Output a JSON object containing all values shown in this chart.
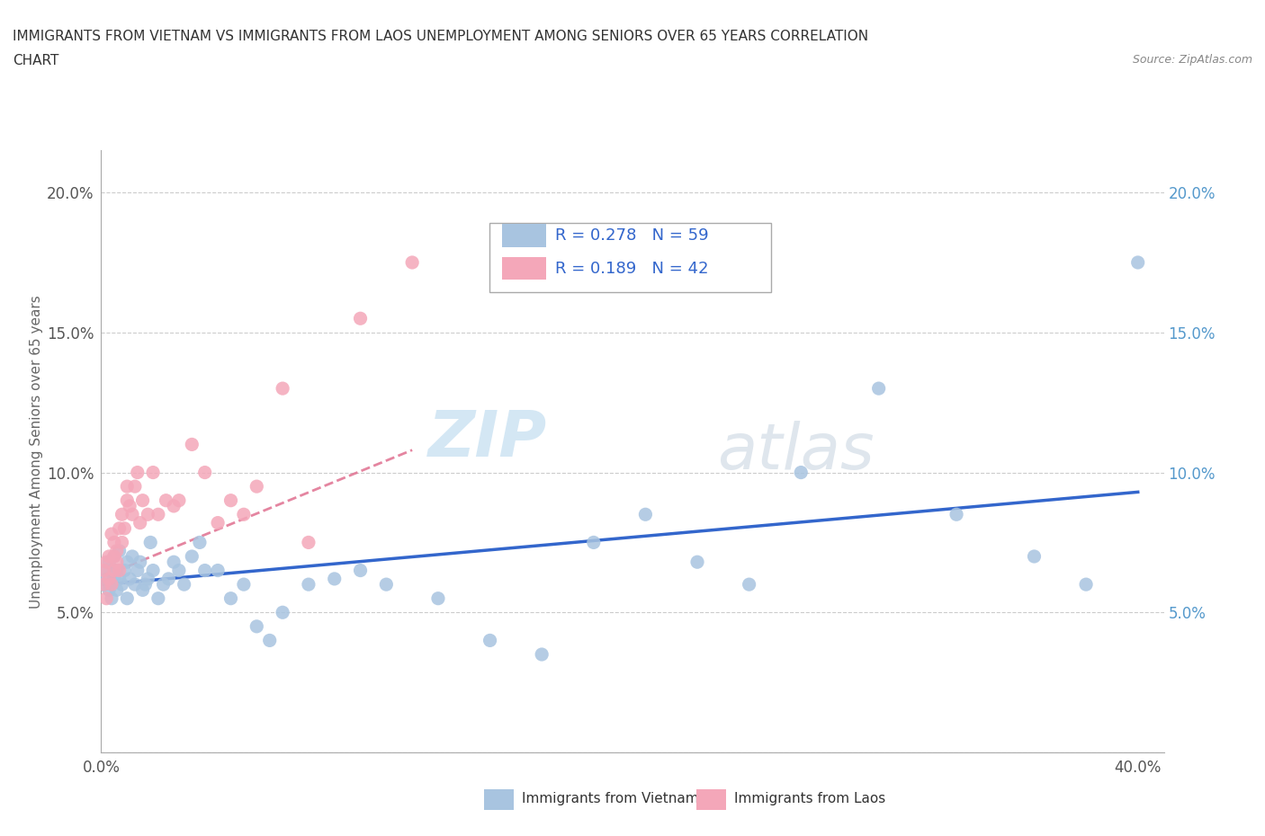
{
  "title_line1": "IMMIGRANTS FROM VIETNAM VS IMMIGRANTS FROM LAOS UNEMPLOYMENT AMONG SENIORS OVER 65 YEARS CORRELATION",
  "title_line2": "CHART",
  "source": "Source: ZipAtlas.com",
  "ylabel": "Unemployment Among Seniors over 65 years",
  "xlim": [
    0.0,
    0.41
  ],
  "ylim": [
    0.0,
    0.215
  ],
  "xticks": [
    0.0,
    0.1,
    0.2,
    0.3,
    0.4
  ],
  "xticklabels": [
    "0.0%",
    "",
    "",
    "",
    "40.0%"
  ],
  "yticks": [
    0.0,
    0.05,
    0.1,
    0.15,
    0.2
  ],
  "yticklabels": [
    "",
    "5.0%",
    "10.0%",
    "15.0%",
    "20.0%"
  ],
  "vietnam_color": "#a8c4e0",
  "laos_color": "#f4a7b9",
  "vietnam_line_color": "#3366cc",
  "laos_line_color": "#e07090",
  "R_vietnam": 0.278,
  "N_vietnam": 59,
  "R_laos": 0.189,
  "N_laos": 42,
  "legend_vietnam": "Immigrants from Vietnam",
  "legend_laos": "Immigrants from Laos",
  "watermark_zip": "ZIP",
  "watermark_atlas": "atlas",
  "vietnam_scatter_x": [
    0.001,
    0.002,
    0.002,
    0.003,
    0.003,
    0.004,
    0.004,
    0.005,
    0.005,
    0.006,
    0.006,
    0.007,
    0.007,
    0.008,
    0.009,
    0.01,
    0.01,
    0.011,
    0.012,
    0.013,
    0.014,
    0.015,
    0.016,
    0.017,
    0.018,
    0.019,
    0.02,
    0.022,
    0.024,
    0.026,
    0.028,
    0.03,
    0.032,
    0.035,
    0.038,
    0.04,
    0.045,
    0.05,
    0.055,
    0.06,
    0.065,
    0.07,
    0.08,
    0.09,
    0.1,
    0.11,
    0.13,
    0.15,
    0.17,
    0.19,
    0.21,
    0.23,
    0.25,
    0.27,
    0.3,
    0.33,
    0.36,
    0.38,
    0.4
  ],
  "vietnam_scatter_y": [
    0.06,
    0.062,
    0.065,
    0.058,
    0.068,
    0.06,
    0.055,
    0.063,
    0.07,
    0.058,
    0.065,
    0.062,
    0.072,
    0.06,
    0.065,
    0.055,
    0.068,
    0.062,
    0.07,
    0.06,
    0.065,
    0.068,
    0.058,
    0.06,
    0.062,
    0.075,
    0.065,
    0.055,
    0.06,
    0.062,
    0.068,
    0.065,
    0.06,
    0.07,
    0.075,
    0.065,
    0.065,
    0.055,
    0.06,
    0.045,
    0.04,
    0.05,
    0.06,
    0.062,
    0.065,
    0.06,
    0.055,
    0.04,
    0.035,
    0.075,
    0.085,
    0.068,
    0.06,
    0.1,
    0.13,
    0.085,
    0.07,
    0.06,
    0.175
  ],
  "laos_scatter_x": [
    0.001,
    0.001,
    0.002,
    0.002,
    0.003,
    0.003,
    0.004,
    0.004,
    0.005,
    0.005,
    0.005,
    0.006,
    0.006,
    0.007,
    0.007,
    0.008,
    0.008,
    0.009,
    0.01,
    0.01,
    0.011,
    0.012,
    0.013,
    0.014,
    0.015,
    0.016,
    0.018,
    0.02,
    0.022,
    0.025,
    0.028,
    0.03,
    0.035,
    0.04,
    0.045,
    0.05,
    0.055,
    0.06,
    0.07,
    0.08,
    0.1,
    0.12
  ],
  "laos_scatter_y": [
    0.06,
    0.065,
    0.055,
    0.068,
    0.062,
    0.07,
    0.06,
    0.078,
    0.065,
    0.07,
    0.075,
    0.068,
    0.072,
    0.065,
    0.08,
    0.075,
    0.085,
    0.08,
    0.09,
    0.095,
    0.088,
    0.085,
    0.095,
    0.1,
    0.082,
    0.09,
    0.085,
    0.1,
    0.085,
    0.09,
    0.088,
    0.09,
    0.11,
    0.1,
    0.082,
    0.09,
    0.085,
    0.095,
    0.13,
    0.075,
    0.155,
    0.175
  ],
  "viet_line_x0": 0.001,
  "viet_line_x1": 0.4,
  "viet_line_y0": 0.06,
  "viet_line_y1": 0.093,
  "laos_line_x0": 0.001,
  "laos_line_x1": 0.12,
  "laos_line_y0": 0.063,
  "laos_line_y1": 0.108
}
